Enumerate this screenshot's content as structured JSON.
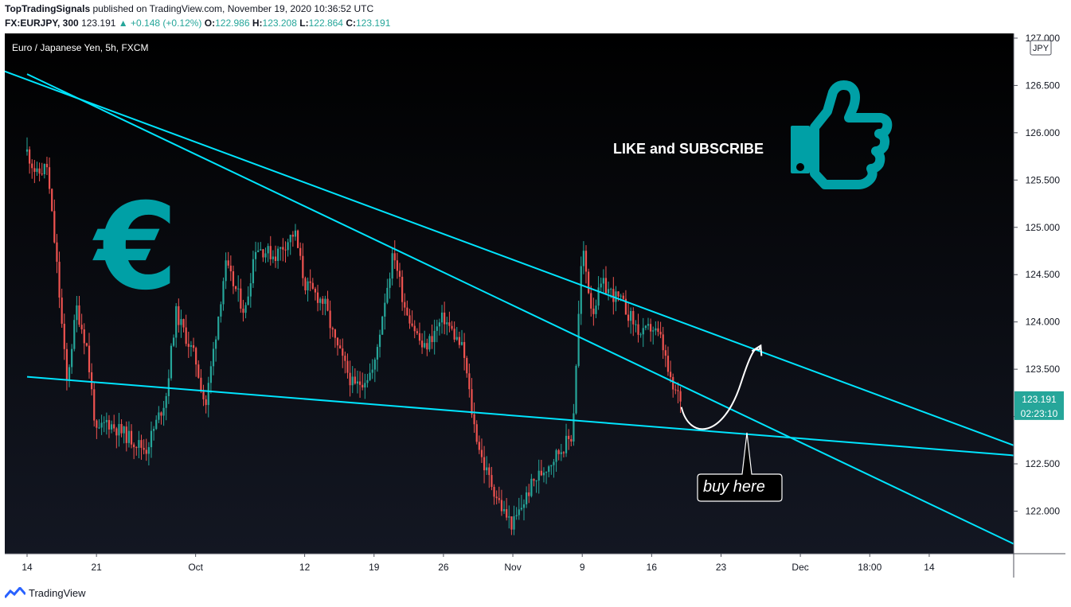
{
  "header": {
    "author": "TopTradingSignals",
    "published_text": "published on TradingView.com, November 19, 2020 10:36:52 UTC"
  },
  "ohlc_bar": {
    "symbol": "FX:EURJPY, 300",
    "last": "123.191",
    "change": "+0.148 (+0.12%)",
    "open_label": "O:",
    "open": "122.986",
    "high_label": "H:",
    "high": "123.208",
    "low_label": "L:",
    "low": "122.864",
    "close_label": "C:",
    "close": "123.191"
  },
  "legend_text": "Euro / Japanese Yen, 5h, FXCM",
  "currency_badge": "JPY",
  "price_tag": {
    "price": "123.191",
    "countdown": "02:23:10"
  },
  "annotations": {
    "like_subscribe": "LIKE and SUBSCRIBE",
    "buy_here": "buy here",
    "euro_symbol": "€"
  },
  "icons": [
    "thumbs-up-icon",
    "euro-icon",
    "tradingview-logo-icon"
  ],
  "colors": {
    "background_top": "#000000",
    "background_bottom": "#131722",
    "up_candle": "#26a69a",
    "down_candle": "#ef5350",
    "trendline": "#00e5ff",
    "annotation_teal": "#00a0a6",
    "price_tag": "#26a69a",
    "text_light": "#ffffff"
  },
  "footer": {
    "brand": "TradingView"
  },
  "chart_data": {
    "type": "candlestick",
    "title": "Euro / Japanese Yen, 5h, FXCM",
    "ylim": [
      121.55,
      127.05
    ],
    "y_ticks": [
      "122.000",
      "122.500",
      "123.000",
      "123.500",
      "124.000",
      "124.500",
      "125.000",
      "125.500",
      "126.000",
      "126.500",
      "127.000"
    ],
    "x_ticks": [
      "14",
      "21",
      "Oct",
      "12",
      "19",
      "26",
      "Nov",
      "9",
      "16",
      "23",
      "Dec",
      "18:00",
      "14"
    ],
    "grid": false,
    "price_path": [
      {
        "date": "2020-09-14",
        "price": 125.8
      },
      {
        "date": "2020-09-15",
        "price": 125.55
      },
      {
        "date": "2020-09-16",
        "price": 125.65
      },
      {
        "date": "2020-09-17",
        "price": 124.6
      },
      {
        "date": "2020-09-18",
        "price": 123.35
      },
      {
        "date": "2020-09-19",
        "price": 124.15
      },
      {
        "date": "2020-09-20",
        "price": 123.75
      },
      {
        "date": "2020-09-21",
        "price": 122.8
      },
      {
        "date": "2020-09-22",
        "price": 122.95
      },
      {
        "date": "2020-09-24",
        "price": 122.8
      },
      {
        "date": "2020-09-26",
        "price": 122.65
      },
      {
        "date": "2020-09-28",
        "price": 123.2
      },
      {
        "date": "2020-09-29",
        "price": 124.1
      },
      {
        "date": "2020-10-01",
        "price": 123.6
      },
      {
        "date": "2020-10-02",
        "price": 123.1
      },
      {
        "date": "2020-10-04",
        "price": 124.6
      },
      {
        "date": "2020-10-06",
        "price": 124.1
      },
      {
        "date": "2020-10-07",
        "price": 124.8
      },
      {
        "date": "2020-10-09",
        "price": 124.7
      },
      {
        "date": "2020-10-11",
        "price": 124.95
      },
      {
        "date": "2020-10-12",
        "price": 124.4
      },
      {
        "date": "2020-10-14",
        "price": 124.2
      },
      {
        "date": "2020-10-15",
        "price": 123.8
      },
      {
        "date": "2020-10-17",
        "price": 123.3
      },
      {
        "date": "2020-10-19",
        "price": 123.5
      },
      {
        "date": "2020-10-20",
        "price": 124.2
      },
      {
        "date": "2020-10-21",
        "price": 124.75
      },
      {
        "date": "2020-10-22",
        "price": 124.2
      },
      {
        "date": "2020-10-24",
        "price": 123.7
      },
      {
        "date": "2020-10-26",
        "price": 124.05
      },
      {
        "date": "2020-10-28",
        "price": 123.7
      },
      {
        "date": "2020-10-29",
        "price": 122.95
      },
      {
        "date": "2020-10-30",
        "price": 122.5
      },
      {
        "date": "2020-11-01",
        "price": 122.0
      },
      {
        "date": "2020-11-02",
        "price": 121.85
      },
      {
        "date": "2020-11-04",
        "price": 122.3
      },
      {
        "date": "2020-11-06",
        "price": 122.55
      },
      {
        "date": "2020-11-08",
        "price": 122.8
      },
      {
        "date": "2020-11-09",
        "price": 124.8
      },
      {
        "date": "2020-11-10",
        "price": 124.1
      },
      {
        "date": "2020-11-11",
        "price": 124.4
      },
      {
        "date": "2020-11-13",
        "price": 124.2
      },
      {
        "date": "2020-11-15",
        "price": 123.85
      },
      {
        "date": "2020-11-16",
        "price": 123.95
      },
      {
        "date": "2020-11-17",
        "price": 123.8
      },
      {
        "date": "2020-11-18",
        "price": 123.3
      },
      {
        "date": "2020-11-19",
        "price": 123.191
      }
    ],
    "trendlines": [
      {
        "name": "",
        "points": [
          {
            "date": "2020-08-26",
            "price": 127.3
          },
          {
            "date": "2020-12-26",
            "price": 122.56
          }
        ]
      },
      {
        "name": "",
        "points": [
          {
            "date": "2020-09-14",
            "price": 126.62
          },
          {
            "date": "2020-12-25",
            "price": 121.53
          }
        ]
      },
      {
        "name": "",
        "points": [
          {
            "date": "2020-09-14",
            "price": 123.42
          },
          {
            "date": "2020-12-26",
            "price": 122.56
          }
        ]
      }
    ],
    "projection": [
      {
        "date": "2020-11-19",
        "price": 123.1
      },
      {
        "date": "2020-11-22",
        "price": 122.85
      },
      {
        "date": "2020-11-25",
        "price": 123.35
      },
      {
        "date": "2020-11-27",
        "price": 123.75
      }
    ]
  }
}
